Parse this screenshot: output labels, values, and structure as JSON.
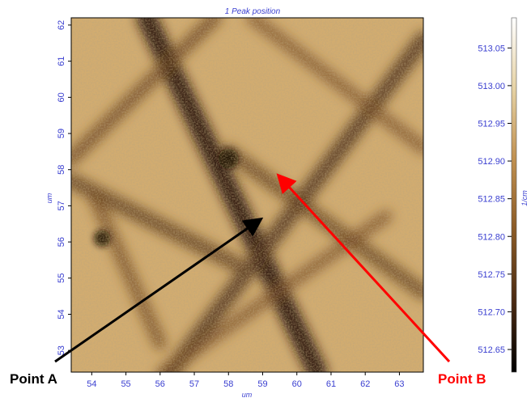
{
  "chart_data": {
    "type": "heatmap",
    "title": "1 Peak position",
    "xlabel": "um",
    "ylabel": "um",
    "colorbar_label": "1/cm",
    "xlim": [
      53.4,
      63.7
    ],
    "ylim": [
      52.4,
      62.2
    ],
    "xticks": [
      "54",
      "55",
      "56",
      "57",
      "58",
      "59",
      "60",
      "61",
      "62",
      "63"
    ],
    "yticks": [
      "53",
      "54",
      "55",
      "56",
      "57",
      "58",
      "59",
      "60",
      "61",
      "62"
    ],
    "colorbar": {
      "min": 512.62,
      "max": 513.09,
      "ticks": [
        "513.05",
        "513.00",
        "512.95",
        "512.90",
        "512.85",
        "512.80",
        "512.75",
        "512.70",
        "512.65"
      ]
    },
    "colormap": [
      "#000000",
      "#4a2a12",
      "#8a5a26",
      "#c09050",
      "#e6d2a4",
      "#ffffff"
    ],
    "background_color": "#d2ac70",
    "bands": [
      {
        "x1": 55.6,
        "y1": 62.2,
        "x2": 60.6,
        "y2": 52.4,
        "depth": 0.9
      },
      {
        "x1": 55.6,
        "y1": 51.5,
        "x2": 63.7,
        "y2": 61.6,
        "depth": 0.6
      },
      {
        "x1": 53.4,
        "y1": 58.3,
        "x2": 57.6,
        "y2": 62.2,
        "depth": 0.4
      },
      {
        "x1": 53.4,
        "y1": 57.7,
        "x2": 58.2,
        "y2": 55.4,
        "depth": 0.5
      },
      {
        "x1": 54.1,
        "y1": 57.2,
        "x2": 56.0,
        "y2": 53.2,
        "depth": 0.35
      },
      {
        "x1": 58.0,
        "y1": 58.5,
        "x2": 63.7,
        "y2": 54.6,
        "depth": 0.45
      },
      {
        "x1": 58.7,
        "y1": 62.2,
        "x2": 63.7,
        "y2": 58.6,
        "depth": 0.3
      },
      {
        "x1": 56.1,
        "y1": 52.4,
        "x2": 62.6,
        "y2": 56.7,
        "depth": 0.3
      }
    ],
    "dark_spots": [
      {
        "x": 58.0,
        "y": 58.3,
        "r": 0.3
      },
      {
        "x": 54.3,
        "y": 56.1,
        "r": 0.25
      }
    ],
    "annotations": [
      {
        "label": "Point A",
        "color": "#000000",
        "x": 58.9,
        "y": 56.6
      },
      {
        "label": "Point B",
        "color": "#ff0000",
        "x": 59.5,
        "y": 57.8
      }
    ]
  }
}
